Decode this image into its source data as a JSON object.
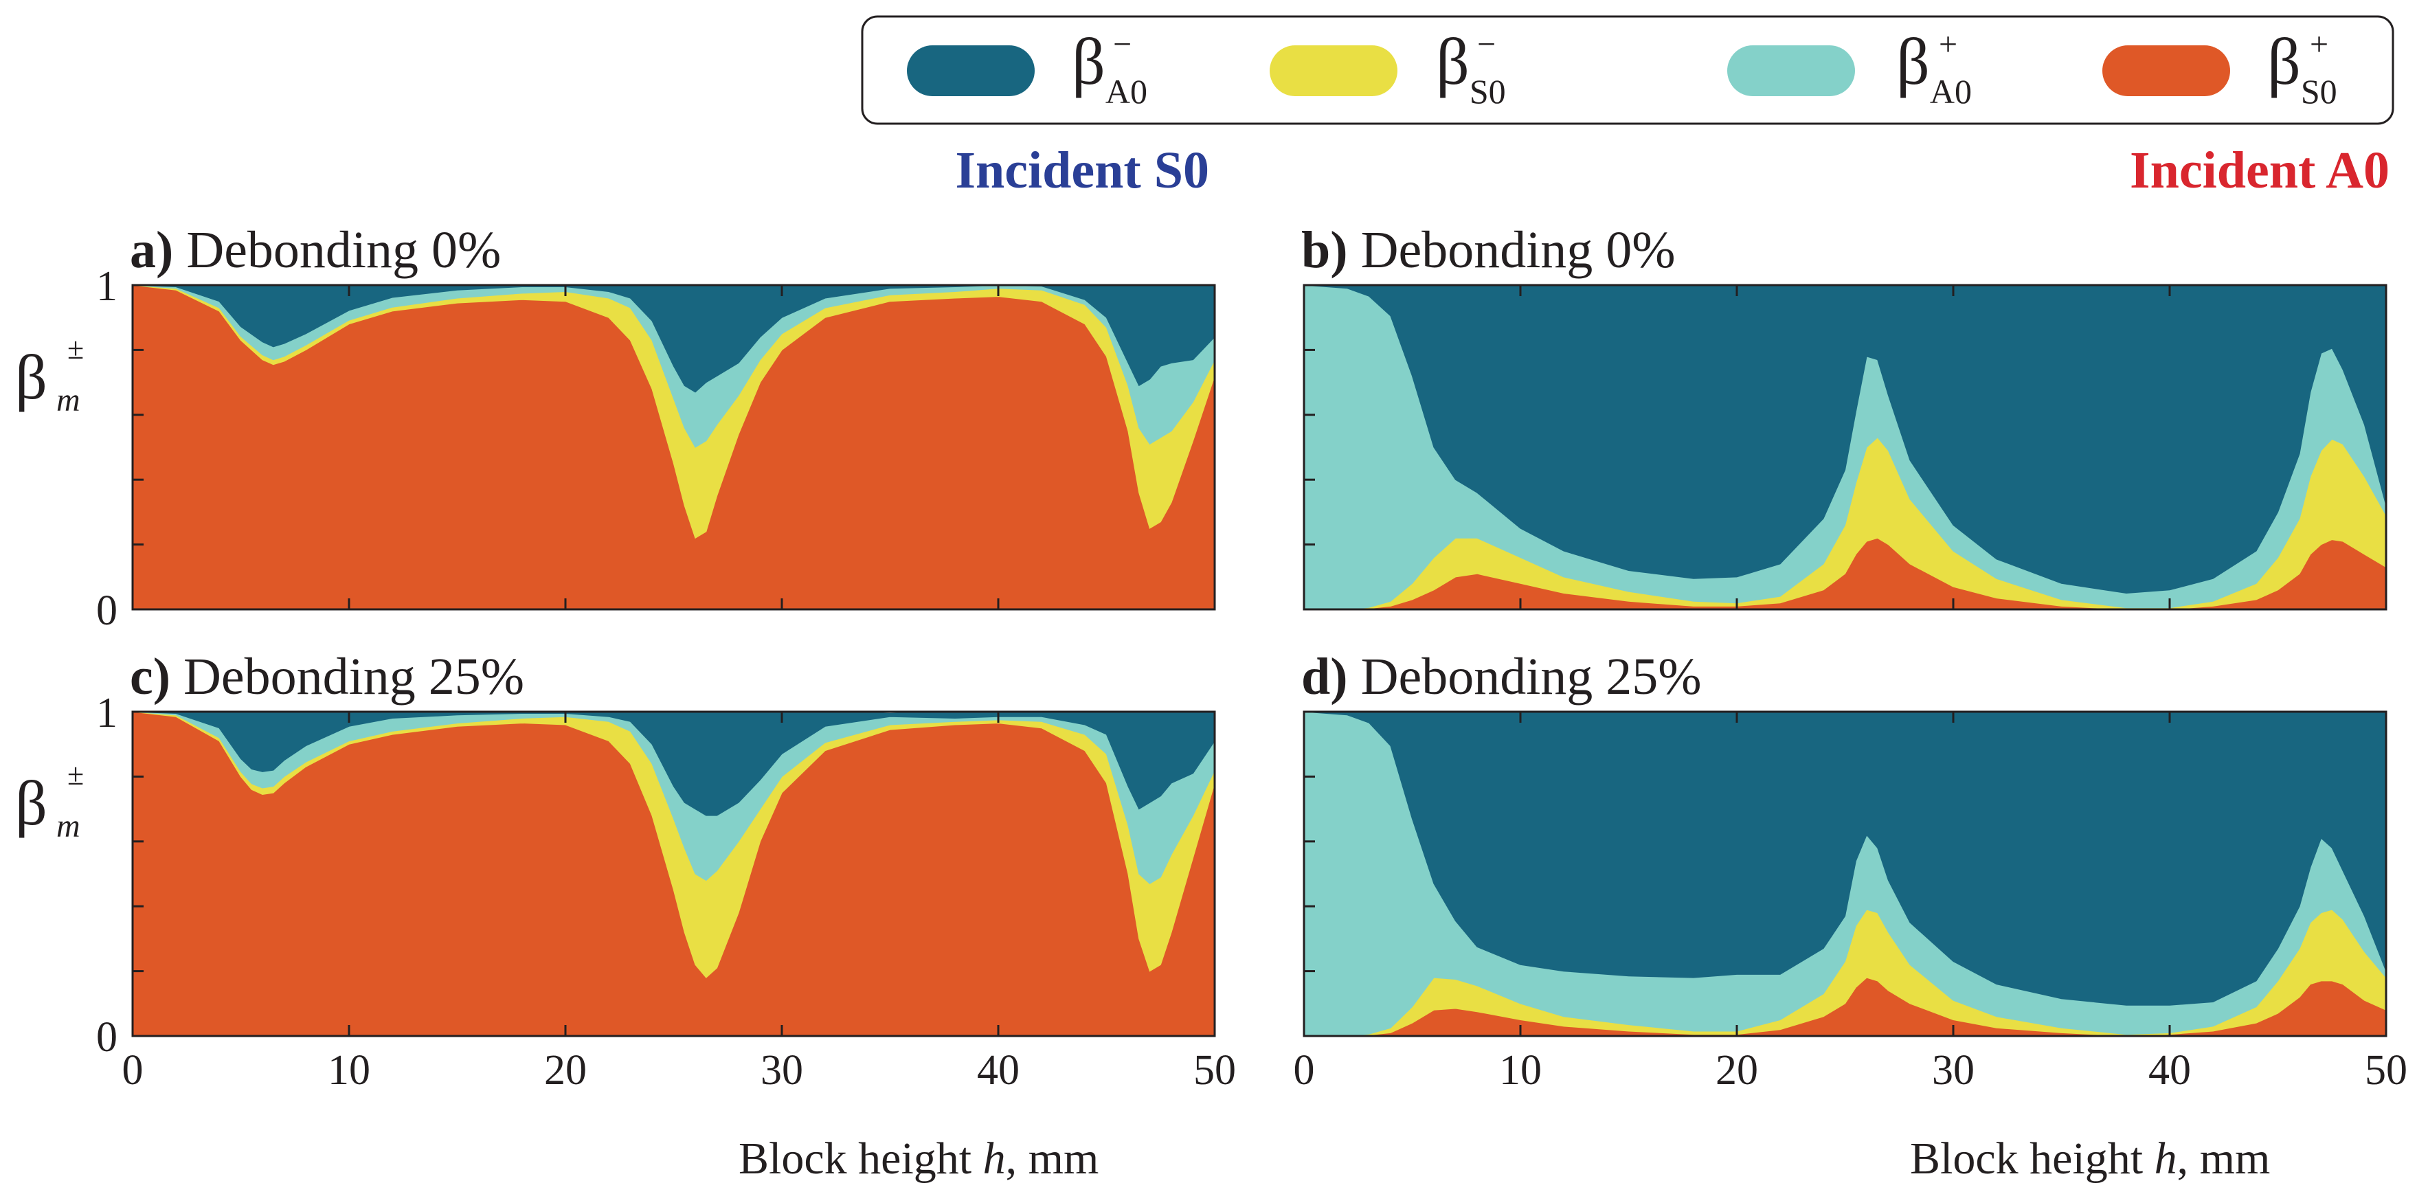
{
  "figure": {
    "incident_left": "Incident S0",
    "incident_right": "Incident A0",
    "incident_left_color": "#2a3f96",
    "incident_right_color": "#d9262e",
    "legend": [
      {
        "base": "β",
        "sub": "A0",
        "sup": "−",
        "color": "#186680"
      },
      {
        "base": "β",
        "sub": "S0",
        "sup": "−",
        "color": "#e9df44"
      },
      {
        "base": "β",
        "sub": "A0",
        "sup": "+",
        "color": "#84d1c9"
      },
      {
        "base": "β",
        "sub": "S0",
        "sup": "+",
        "color": "#df5827"
      }
    ],
    "y_axis_symbol": {
      "base": "β",
      "sub": "m",
      "sup": "±"
    },
    "x_axis_title": {
      "prefix": "Block height ",
      "var": "h",
      "suffix": ", mm"
    }
  },
  "chart_data": [
    {
      "type": "area",
      "stacked": true,
      "panel_id": "a",
      "panel_tag": "a)",
      "title": "Debonding 0%",
      "column": "Incident S0",
      "xlabel": "",
      "ylabel": "β_m^±",
      "xlim": [
        0,
        50
      ],
      "ylim": [
        0,
        1
      ],
      "xticks": [
        0,
        10,
        20,
        30,
        40,
        50
      ],
      "yticks": [
        0,
        0.2,
        0.4,
        0.6,
        0.8,
        1
      ],
      "ytick_labels": [
        "0",
        "",
        "",
        "",
        "",
        "1"
      ],
      "show_xtick_labels": false,
      "x": [
        0,
        2,
        4,
        5,
        6,
        6.5,
        7,
        8,
        10,
        12,
        15,
        18,
        20,
        22,
        23,
        24,
        25,
        25.5,
        26,
        26.5,
        27,
        28,
        29,
        30,
        32,
        35,
        38,
        40,
        42,
        44,
        45,
        46,
        46.5,
        47,
        47.5,
        48,
        49,
        50
      ],
      "series": [
        {
          "name": "β_S0^+",
          "values": [
            1,
            0.985,
            0.92,
            0.83,
            0.77,
            0.755,
            0.765,
            0.8,
            0.88,
            0.92,
            0.945,
            0.955,
            0.95,
            0.9,
            0.83,
            0.68,
            0.45,
            0.32,
            0.22,
            0.24,
            0.35,
            0.54,
            0.7,
            0.8,
            0.9,
            0.95,
            0.96,
            0.965,
            0.95,
            0.88,
            0.78,
            0.55,
            0.36,
            0.25,
            0.27,
            0.33,
            0.52,
            0.72
          ]
        },
        {
          "name": "β_S0^-",
          "values": [
            0,
            0.005,
            0.01,
            0.012,
            0.015,
            0.015,
            0.015,
            0.015,
            0.012,
            0.012,
            0.015,
            0.02,
            0.03,
            0.06,
            0.1,
            0.15,
            0.2,
            0.24,
            0.28,
            0.28,
            0.22,
            0.12,
            0.07,
            0.05,
            0.03,
            0.02,
            0.02,
            0.025,
            0.035,
            0.06,
            0.09,
            0.14,
            0.2,
            0.26,
            0.26,
            0.22,
            0.12,
            0.05
          ]
        },
        {
          "name": "β_A0^+",
          "values": [
            0,
            0.005,
            0.02,
            0.03,
            0.04,
            0.04,
            0.04,
            0.035,
            0.03,
            0.03,
            0.025,
            0.02,
            0.015,
            0.02,
            0.03,
            0.06,
            0.1,
            0.13,
            0.17,
            0.18,
            0.15,
            0.1,
            0.07,
            0.05,
            0.03,
            0.02,
            0.015,
            0.01,
            0.012,
            0.015,
            0.03,
            0.07,
            0.13,
            0.2,
            0.22,
            0.21,
            0.13,
            0.07
          ]
        },
        {
          "name": "β_A0^-",
          "values": [
            0,
            0.005,
            0.05,
            0.128,
            0.175,
            0.19,
            0.18,
            0.15,
            0.078,
            0.038,
            0.015,
            0.005,
            0.005,
            0.02,
            0.04,
            0.11,
            0.25,
            0.31,
            0.33,
            0.3,
            0.28,
            0.24,
            0.16,
            0.1,
            0.05,
            0.01,
            0.005,
            0,
            0.003,
            0.045,
            0.1,
            0.24,
            0.31,
            0.29,
            0.25,
            0.24,
            0.23,
            0.16
          ]
        }
      ]
    },
    {
      "type": "area",
      "stacked": true,
      "panel_id": "b",
      "panel_tag": "b)",
      "title": "Debonding 0%",
      "column": "Incident A0",
      "xlabel": "",
      "ylabel": "",
      "xlim": [
        0,
        50
      ],
      "ylim": [
        0,
        1
      ],
      "xticks": [
        0,
        10,
        20,
        30,
        40,
        50
      ],
      "yticks": [
        0,
        0.2,
        0.4,
        0.6,
        0.8,
        1
      ],
      "ytick_labels": [
        "",
        "",
        "",
        "",
        "",
        ""
      ],
      "show_xtick_labels": false,
      "x": [
        0,
        2,
        3,
        4,
        5,
        6,
        7,
        8,
        10,
        12,
        15,
        18,
        20,
        22,
        24,
        25,
        25.5,
        26,
        26.5,
        27,
        28,
        30,
        32,
        35,
        38,
        40,
        42,
        44,
        45,
        46,
        46.5,
        47,
        47.5,
        48,
        49,
        50
      ],
      "series": [
        {
          "name": "β_S0^+",
          "values": [
            0,
            0,
            0.003,
            0.01,
            0.03,
            0.06,
            0.1,
            0.11,
            0.08,
            0.05,
            0.025,
            0.01,
            0.01,
            0.02,
            0.06,
            0.11,
            0.17,
            0.21,
            0.22,
            0.2,
            0.14,
            0.07,
            0.035,
            0.01,
            0,
            0,
            0.01,
            0.03,
            0.06,
            0.11,
            0.17,
            0.2,
            0.215,
            0.21,
            0.17,
            0.13
          ]
        },
        {
          "name": "β_S0^-",
          "values": [
            0,
            0,
            0.003,
            0.015,
            0.05,
            0.1,
            0.12,
            0.11,
            0.08,
            0.05,
            0.03,
            0.015,
            0.01,
            0.02,
            0.08,
            0.15,
            0.22,
            0.29,
            0.31,
            0.29,
            0.2,
            0.11,
            0.06,
            0.02,
            0.005,
            0.005,
            0.015,
            0.05,
            0.1,
            0.17,
            0.24,
            0.29,
            0.31,
            0.3,
            0.24,
            0.16
          ]
        },
        {
          "name": "β_A0^+",
          "values": [
            1,
            0.99,
            0.96,
            0.88,
            0.64,
            0.34,
            0.18,
            0.14,
            0.09,
            0.08,
            0.065,
            0.07,
            0.08,
            0.1,
            0.14,
            0.17,
            0.22,
            0.28,
            0.24,
            0.17,
            0.12,
            0.08,
            0.06,
            0.05,
            0.045,
            0.055,
            0.07,
            0.1,
            0.14,
            0.2,
            0.26,
            0.3,
            0.28,
            0.23,
            0.16,
            0.03
          ]
        },
        {
          "name": "β_A0^-",
          "values": [
            0,
            0.01,
            0.037,
            0.095,
            0.28,
            0.5,
            0.6,
            0.64,
            0.75,
            0.82,
            0.88,
            0.905,
            0.9,
            0.86,
            0.72,
            0.57,
            0.39,
            0.22,
            0.23,
            0.34,
            0.54,
            0.74,
            0.845,
            0.92,
            0.95,
            0.94,
            0.905,
            0.82,
            0.7,
            0.52,
            0.33,
            0.21,
            0.195,
            0.26,
            0.43,
            0.68
          ]
        }
      ]
    },
    {
      "type": "area",
      "stacked": true,
      "panel_id": "c",
      "panel_tag": "c)",
      "title": "Debonding 25%",
      "column": "Incident S0",
      "xlabel": "",
      "ylabel": "β_m^±",
      "xlim": [
        0,
        50
      ],
      "ylim": [
        0,
        1
      ],
      "xticks": [
        0,
        10,
        20,
        30,
        40,
        50
      ],
      "yticks": [
        0,
        0.2,
        0.4,
        0.6,
        0.8,
        1
      ],
      "ytick_labels": [
        "0",
        "",
        "",
        "",
        "",
        "1"
      ],
      "show_xtick_labels": true,
      "x": [
        0,
        2,
        4,
        5,
        5.5,
        6,
        6.5,
        7,
        8,
        10,
        12,
        15,
        18,
        20,
        22,
        23,
        24,
        25,
        25.5,
        26,
        26.5,
        27,
        28,
        29,
        30,
        32,
        35,
        38,
        40,
        42,
        44,
        45,
        46,
        46.5,
        47,
        47.5,
        48,
        49,
        50
      ],
      "series": [
        {
          "name": "β_S0^+",
          "values": [
            1,
            0.985,
            0.91,
            0.8,
            0.76,
            0.745,
            0.75,
            0.78,
            0.83,
            0.9,
            0.93,
            0.955,
            0.965,
            0.96,
            0.91,
            0.84,
            0.68,
            0.45,
            0.32,
            0.22,
            0.18,
            0.21,
            0.38,
            0.6,
            0.75,
            0.88,
            0.945,
            0.96,
            0.965,
            0.95,
            0.88,
            0.78,
            0.5,
            0.3,
            0.2,
            0.22,
            0.32,
            0.55,
            0.78
          ]
        },
        {
          "name": "β_S0^-",
          "values": [
            0,
            0.005,
            0.01,
            0.015,
            0.018,
            0.02,
            0.02,
            0.02,
            0.015,
            0.01,
            0.01,
            0.01,
            0.015,
            0.025,
            0.06,
            0.1,
            0.16,
            0.22,
            0.26,
            0.28,
            0.3,
            0.3,
            0.22,
            0.1,
            0.05,
            0.025,
            0.015,
            0.01,
            0.01,
            0.02,
            0.05,
            0.09,
            0.15,
            0.2,
            0.27,
            0.27,
            0.24,
            0.13,
            0.04
          ]
        },
        {
          "name": "β_A0^+",
          "values": [
            0,
            0.005,
            0.03,
            0.04,
            0.045,
            0.05,
            0.05,
            0.05,
            0.05,
            0.045,
            0.04,
            0.025,
            0.015,
            0.01,
            0.015,
            0.03,
            0.06,
            0.1,
            0.14,
            0.2,
            0.2,
            0.17,
            0.12,
            0.09,
            0.07,
            0.05,
            0.025,
            0.01,
            0.01,
            0.015,
            0.03,
            0.06,
            0.12,
            0.2,
            0.25,
            0.25,
            0.22,
            0.13,
            0.09
          ]
        },
        {
          "name": "β_A0^-",
          "values": [
            0,
            0.005,
            0.05,
            0.145,
            0.177,
            0.185,
            0.18,
            0.15,
            0.105,
            0.045,
            0.02,
            0.01,
            0.005,
            0.005,
            0.015,
            0.03,
            0.1,
            0.23,
            0.28,
            0.3,
            0.32,
            0.32,
            0.28,
            0.21,
            0.13,
            0.045,
            0.01,
            0.02,
            0.015,
            0.015,
            0.04,
            0.07,
            0.23,
            0.3,
            0.28,
            0.26,
            0.22,
            0.19,
            0.09
          ]
        }
      ]
    },
    {
      "type": "area",
      "stacked": true,
      "panel_id": "d",
      "panel_tag": "d)",
      "title": "Debonding 25%",
      "column": "Incident A0",
      "xlabel": "Block height h, mm",
      "ylabel": "",
      "xlim": [
        0,
        50
      ],
      "ylim": [
        0,
        1
      ],
      "xticks": [
        0,
        10,
        20,
        30,
        40,
        50
      ],
      "yticks": [
        0,
        0.2,
        0.4,
        0.6,
        0.8,
        1
      ],
      "ytick_labels": [
        "",
        "",
        "",
        "",
        "",
        ""
      ],
      "show_xtick_labels": true,
      "x": [
        0,
        2,
        3,
        4,
        5,
        6,
        7,
        8,
        10,
        12,
        15,
        18,
        20,
        22,
        24,
        25,
        25.5,
        26,
        26.5,
        27,
        28,
        30,
        32,
        35,
        38,
        40,
        42,
        44,
        45,
        46,
        46.5,
        47,
        47.5,
        48,
        49,
        50
      ],
      "series": [
        {
          "name": "β_S0^+",
          "values": [
            0,
            0,
            0.003,
            0.01,
            0.04,
            0.08,
            0.085,
            0.075,
            0.05,
            0.03,
            0.015,
            0.005,
            0.005,
            0.02,
            0.06,
            0.1,
            0.15,
            0.18,
            0.17,
            0.14,
            0.1,
            0.05,
            0.025,
            0.01,
            0,
            0.005,
            0.015,
            0.04,
            0.07,
            0.12,
            0.16,
            0.17,
            0.17,
            0.16,
            0.11,
            0.08
          ]
        },
        {
          "name": "β_S0^-",
          "values": [
            0,
            0,
            0.003,
            0.015,
            0.05,
            0.1,
            0.09,
            0.08,
            0.05,
            0.03,
            0.02,
            0.01,
            0.01,
            0.03,
            0.07,
            0.13,
            0.19,
            0.21,
            0.21,
            0.18,
            0.12,
            0.06,
            0.035,
            0.015,
            0.005,
            0.005,
            0.015,
            0.05,
            0.1,
            0.15,
            0.19,
            0.21,
            0.22,
            0.2,
            0.15,
            0.1
          ]
        },
        {
          "name": "β_A0^+",
          "values": [
            1,
            0.99,
            0.96,
            0.87,
            0.58,
            0.29,
            0.18,
            0.12,
            0.12,
            0.14,
            0.15,
            0.165,
            0.175,
            0.14,
            0.14,
            0.14,
            0.2,
            0.23,
            0.2,
            0.16,
            0.13,
            0.12,
            0.1,
            0.09,
            0.09,
            0.085,
            0.075,
            0.08,
            0.1,
            0.13,
            0.17,
            0.23,
            0.19,
            0.15,
            0.11,
            0.02
          ]
        },
        {
          "name": "β_A0^-",
          "values": [
            0,
            0.01,
            0.034,
            0.105,
            0.33,
            0.53,
            0.645,
            0.725,
            0.78,
            0.8,
            0.815,
            0.82,
            0.81,
            0.81,
            0.73,
            0.63,
            0.46,
            0.38,
            0.42,
            0.52,
            0.65,
            0.77,
            0.84,
            0.885,
            0.905,
            0.905,
            0.895,
            0.83,
            0.73,
            0.6,
            0.48,
            0.39,
            0.42,
            0.49,
            0.63,
            0.8
          ]
        }
      ]
    }
  ]
}
